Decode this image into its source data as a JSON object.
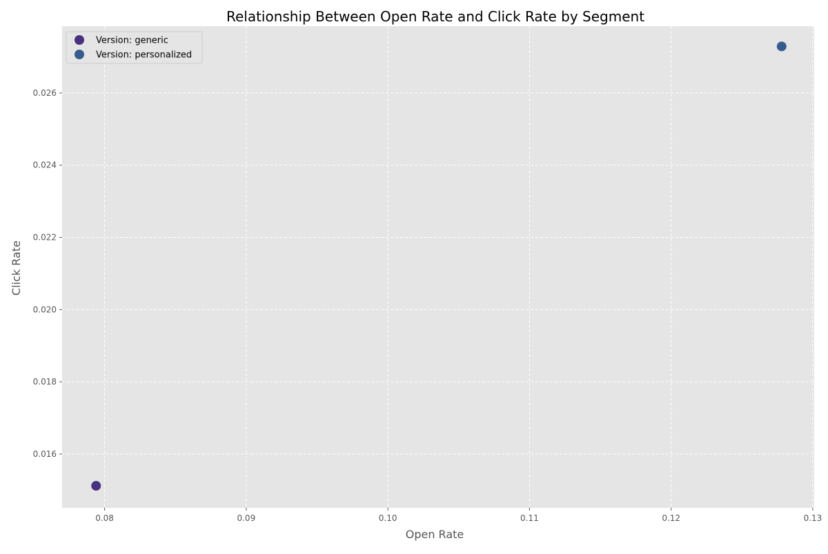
{
  "chart_data": {
    "type": "scatter",
    "title": "Relationship Between Open Rate and Click Rate by Segment",
    "xlabel": "Open Rate",
    "ylabel": "Click Rate",
    "xlim": [
      0.077,
      0.1301
    ],
    "ylim": [
      0.01451,
      0.02785
    ],
    "xticks": [
      0.08,
      0.09,
      0.1,
      0.11,
      0.12,
      0.13
    ],
    "xtick_labels": [
      "0.08",
      "0.09",
      "0.10",
      "0.11",
      "0.12",
      "0.13"
    ],
    "yticks": [
      0.016,
      0.018,
      0.02,
      0.022,
      0.024,
      0.026
    ],
    "ytick_labels": [
      "0.016",
      "0.018",
      "0.020",
      "0.022",
      "0.024",
      "0.026"
    ],
    "grid": true,
    "legend_position": "top-left",
    "series": [
      {
        "name": "Version: generic",
        "color": "#46327e",
        "points": [
          {
            "x": 0.0794,
            "y": 0.01512
          }
        ]
      },
      {
        "name": "Version: personalized",
        "color": "#365c8d",
        "points": [
          {
            "x": 0.1278,
            "y": 0.02729
          }
        ]
      }
    ]
  }
}
